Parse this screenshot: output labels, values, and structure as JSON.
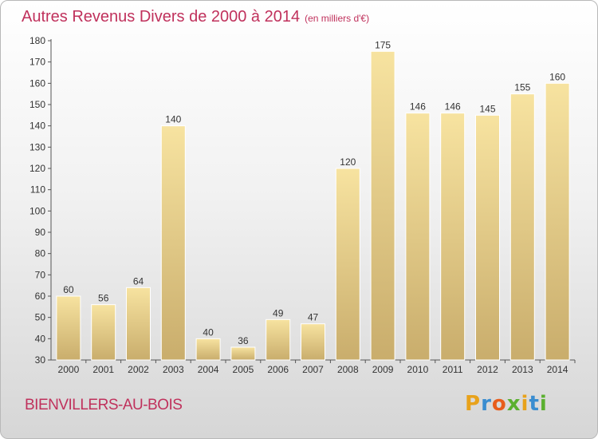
{
  "header": {
    "title": "Autres Revenus Divers de 2000 à 2014",
    "unit": "(en milliers d'€)"
  },
  "footer": {
    "commune": "BIENVILLERS-AU-BOIS",
    "logo": {
      "letters": [
        "P",
        "r",
        "o",
        "x",
        "i",
        "t",
        "i"
      ],
      "colors": [
        "#e8a21b",
        "#3a8dd0",
        "#e85d1c",
        "#5bb030",
        "#e8a21b",
        "#3a8dd0",
        "#5bb030"
      ]
    }
  },
  "colors": {
    "accent": "#c0315c",
    "bar_light": "#f7e3a0",
    "bar_dark": "#c9ad6c"
  },
  "chart_data": {
    "type": "bar",
    "categories": [
      "2000",
      "2001",
      "2002",
      "2003",
      "2004",
      "2005",
      "2006",
      "2007",
      "2008",
      "2009",
      "2010",
      "2011",
      "2012",
      "2013",
      "2014"
    ],
    "values": [
      60,
      56,
      64,
      140,
      40,
      36,
      49,
      47,
      120,
      175,
      146,
      146,
      145,
      155,
      160
    ],
    "ylim": [
      30,
      180
    ],
    "yticks": [
      30,
      40,
      50,
      60,
      70,
      80,
      90,
      100,
      110,
      120,
      130,
      140,
      150,
      160,
      170,
      180
    ],
    "grid": false,
    "data_labels": true
  }
}
